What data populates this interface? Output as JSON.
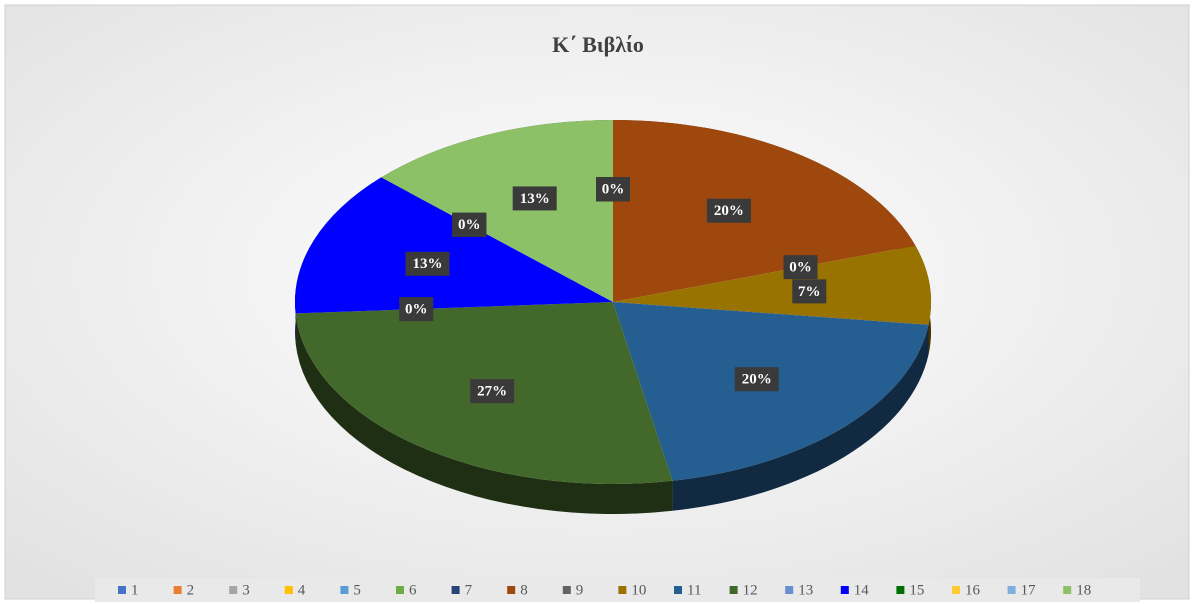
{
  "chart_data": {
    "type": "pie3d",
    "title": "Κ΄ Βιβλίο",
    "categories": [
      "1",
      "2",
      "3",
      "4",
      "5",
      "6",
      "7",
      "8",
      "9",
      "10",
      "11",
      "12",
      "13",
      "14",
      "15",
      "16",
      "17",
      "18"
    ],
    "values": [
      0,
      0,
      0,
      0,
      0,
      0,
      0,
      20,
      0,
      7,
      20,
      27,
      0,
      13,
      0,
      0,
      0,
      13
    ],
    "value_labels": [
      "0%",
      "0%",
      "0%",
      "0%",
      "0%",
      "0%",
      "0%",
      "20%",
      "0%",
      "7%",
      "20%",
      "27%",
      "0%",
      "13%",
      "0%",
      "0%",
      "0%",
      "13%"
    ],
    "colors": [
      "#4472c4",
      "#ed7d31",
      "#a5a5a5",
      "#ffc000",
      "#5b9bd5",
      "#70ad47",
      "#264478",
      "#9e480e",
      "#636363",
      "#997300",
      "#255e91",
      "#43682b",
      "#698ed0",
      "#0000ff",
      "#006e00",
      "#ffcd33",
      "#7cafdd",
      "#8cc168"
    ],
    "legend": "bottom"
  }
}
